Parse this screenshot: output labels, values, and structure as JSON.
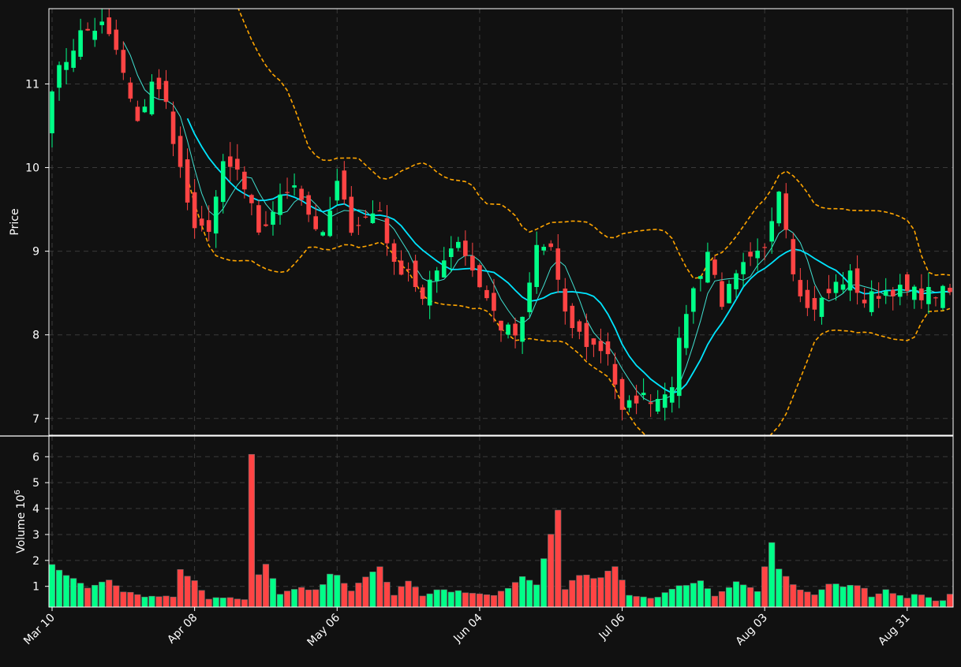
{
  "colors": {
    "background": "#111111",
    "up": "#00ff88",
    "down": "#ff4444",
    "grid": "#3a3a3a",
    "frame": "#ffffff",
    "ma_fast": "#00e5ff",
    "ma_slow": "#40e0d0",
    "bands": "#ffa500",
    "text": "#ffffff"
  },
  "chart_data": {
    "type": "candlestick",
    "price_panel": {
      "ylabel": "Price",
      "yticks": [
        7,
        8,
        9,
        10,
        11
      ],
      "ylim": [
        6.8,
        11.9
      ]
    },
    "volume_panel": {
      "ylabel": "Volume",
      "ylabel_exponent": "10",
      "ylabel_exponent_power": "6",
      "yticks": [
        1,
        2,
        3,
        4,
        5,
        6
      ],
      "ylim": [
        0.2,
        6.8
      ]
    },
    "xtick_labels": [
      "Mar 10",
      "Apr 08",
      "May 06",
      "Jun 04",
      "Jul 06",
      "Aug 03",
      "Aug 31"
    ],
    "xtick_indices": [
      0,
      20,
      40,
      60,
      80,
      100,
      120
    ],
    "n_bars": 127,
    "grid": true,
    "anchors": {
      "close": [
        [
          0,
          11.0
        ],
        [
          4,
          11.6
        ],
        [
          7,
          11.7
        ],
        [
          9,
          11.4
        ],
        [
          12,
          10.5
        ],
        [
          14,
          11.05
        ],
        [
          16,
          10.75
        ],
        [
          20,
          9.2
        ],
        [
          22,
          9.3
        ],
        [
          24,
          10.0
        ],
        [
          26,
          9.95
        ],
        [
          28,
          9.5
        ],
        [
          29,
          9.15
        ],
        [
          31,
          9.5
        ],
        [
          34,
          9.85
        ],
        [
          36,
          9.45
        ],
        [
          38,
          9.15
        ],
        [
          40,
          9.8
        ],
        [
          42,
          9.3
        ],
        [
          44,
          9.4
        ],
        [
          46,
          9.5
        ],
        [
          48,
          8.8
        ],
        [
          50,
          8.8
        ],
        [
          52,
          8.4
        ],
        [
          55,
          8.95
        ],
        [
          57,
          9.15
        ],
        [
          60,
          8.6
        ],
        [
          63,
          8.1
        ],
        [
          65,
          8.0
        ],
        [
          66,
          8.15
        ],
        [
          68,
          9.05
        ],
        [
          70,
          9.05
        ],
        [
          72,
          8.2
        ],
        [
          75,
          7.9
        ],
        [
          78,
          7.8
        ],
        [
          80,
          7.05
        ],
        [
          82,
          7.25
        ],
        [
          85,
          7.25
        ],
        [
          87,
          7.45
        ],
        [
          89,
          8.3
        ],
        [
          92,
          9.0
        ],
        [
          94,
          8.4
        ],
        [
          97,
          8.8
        ],
        [
          100,
          9.0
        ],
        [
          102,
          9.8
        ],
        [
          104,
          8.8
        ],
        [
          106,
          8.3
        ],
        [
          108,
          8.4
        ],
        [
          110,
          8.6
        ],
        [
          112,
          8.7
        ],
        [
          114,
          8.4
        ],
        [
          116,
          8.5
        ],
        [
          118,
          8.55
        ],
        [
          120,
          8.5
        ],
        [
          123,
          8.5
        ],
        [
          126,
          8.5
        ]
      ],
      "volume": [
        [
          0,
          1.9
        ],
        [
          2,
          1.4
        ],
        [
          5,
          0.95
        ],
        [
          8,
          1.3
        ],
        [
          10,
          0.85
        ],
        [
          12,
          0.7
        ],
        [
          14,
          0.6
        ],
        [
          17,
          0.65
        ],
        [
          18,
          1.6
        ],
        [
          20,
          1.25
        ],
        [
          22,
          0.55
        ],
        [
          24,
          0.6
        ],
        [
          27,
          0.45
        ],
        [
          28,
          6.05
        ],
        [
          29,
          1.45
        ],
        [
          30,
          1.8
        ],
        [
          32,
          0.75
        ],
        [
          35,
          0.9
        ],
        [
          37,
          0.8
        ],
        [
          39,
          1.4
        ],
        [
          40,
          1.5
        ],
        [
          42,
          0.85
        ],
        [
          44,
          1.3
        ],
        [
          46,
          1.75
        ],
        [
          48,
          0.65
        ],
        [
          50,
          1.25
        ],
        [
          52,
          0.6
        ],
        [
          55,
          0.9
        ],
        [
          58,
          0.75
        ],
        [
          61,
          0.65
        ],
        [
          64,
          0.85
        ],
        [
          66,
          1.35
        ],
        [
          68,
          1.1
        ],
        [
          71,
          3.95
        ],
        [
          72,
          0.95
        ],
        [
          74,
          1.4
        ],
        [
          77,
          1.3
        ],
        [
          79,
          1.75
        ],
        [
          81,
          0.7
        ],
        [
          84,
          0.55
        ],
        [
          87,
          0.85
        ],
        [
          89,
          1.1
        ],
        [
          91,
          1.2
        ],
        [
          93,
          0.65
        ],
        [
          96,
          1.2
        ],
        [
          99,
          0.8
        ],
        [
          101,
          2.7
        ],
        [
          102,
          1.65
        ],
        [
          104,
          1.0
        ],
        [
          107,
          0.6
        ],
        [
          109,
          1.1
        ],
        [
          111,
          1.05
        ],
        [
          113,
          1.1
        ],
        [
          115,
          0.65
        ],
        [
          117,
          0.85
        ],
        [
          120,
          0.6
        ],
        [
          122,
          0.7
        ],
        [
          124,
          0.4
        ],
        [
          126,
          0.65
        ]
      ]
    },
    "indicators": [
      {
        "name": "MA fast",
        "style": "thick",
        "period": 10
      },
      {
        "name": "MA slow",
        "style": "thin",
        "period": 5
      },
      {
        "name": "Bands",
        "style": "dashed",
        "period": 20
      }
    ]
  }
}
